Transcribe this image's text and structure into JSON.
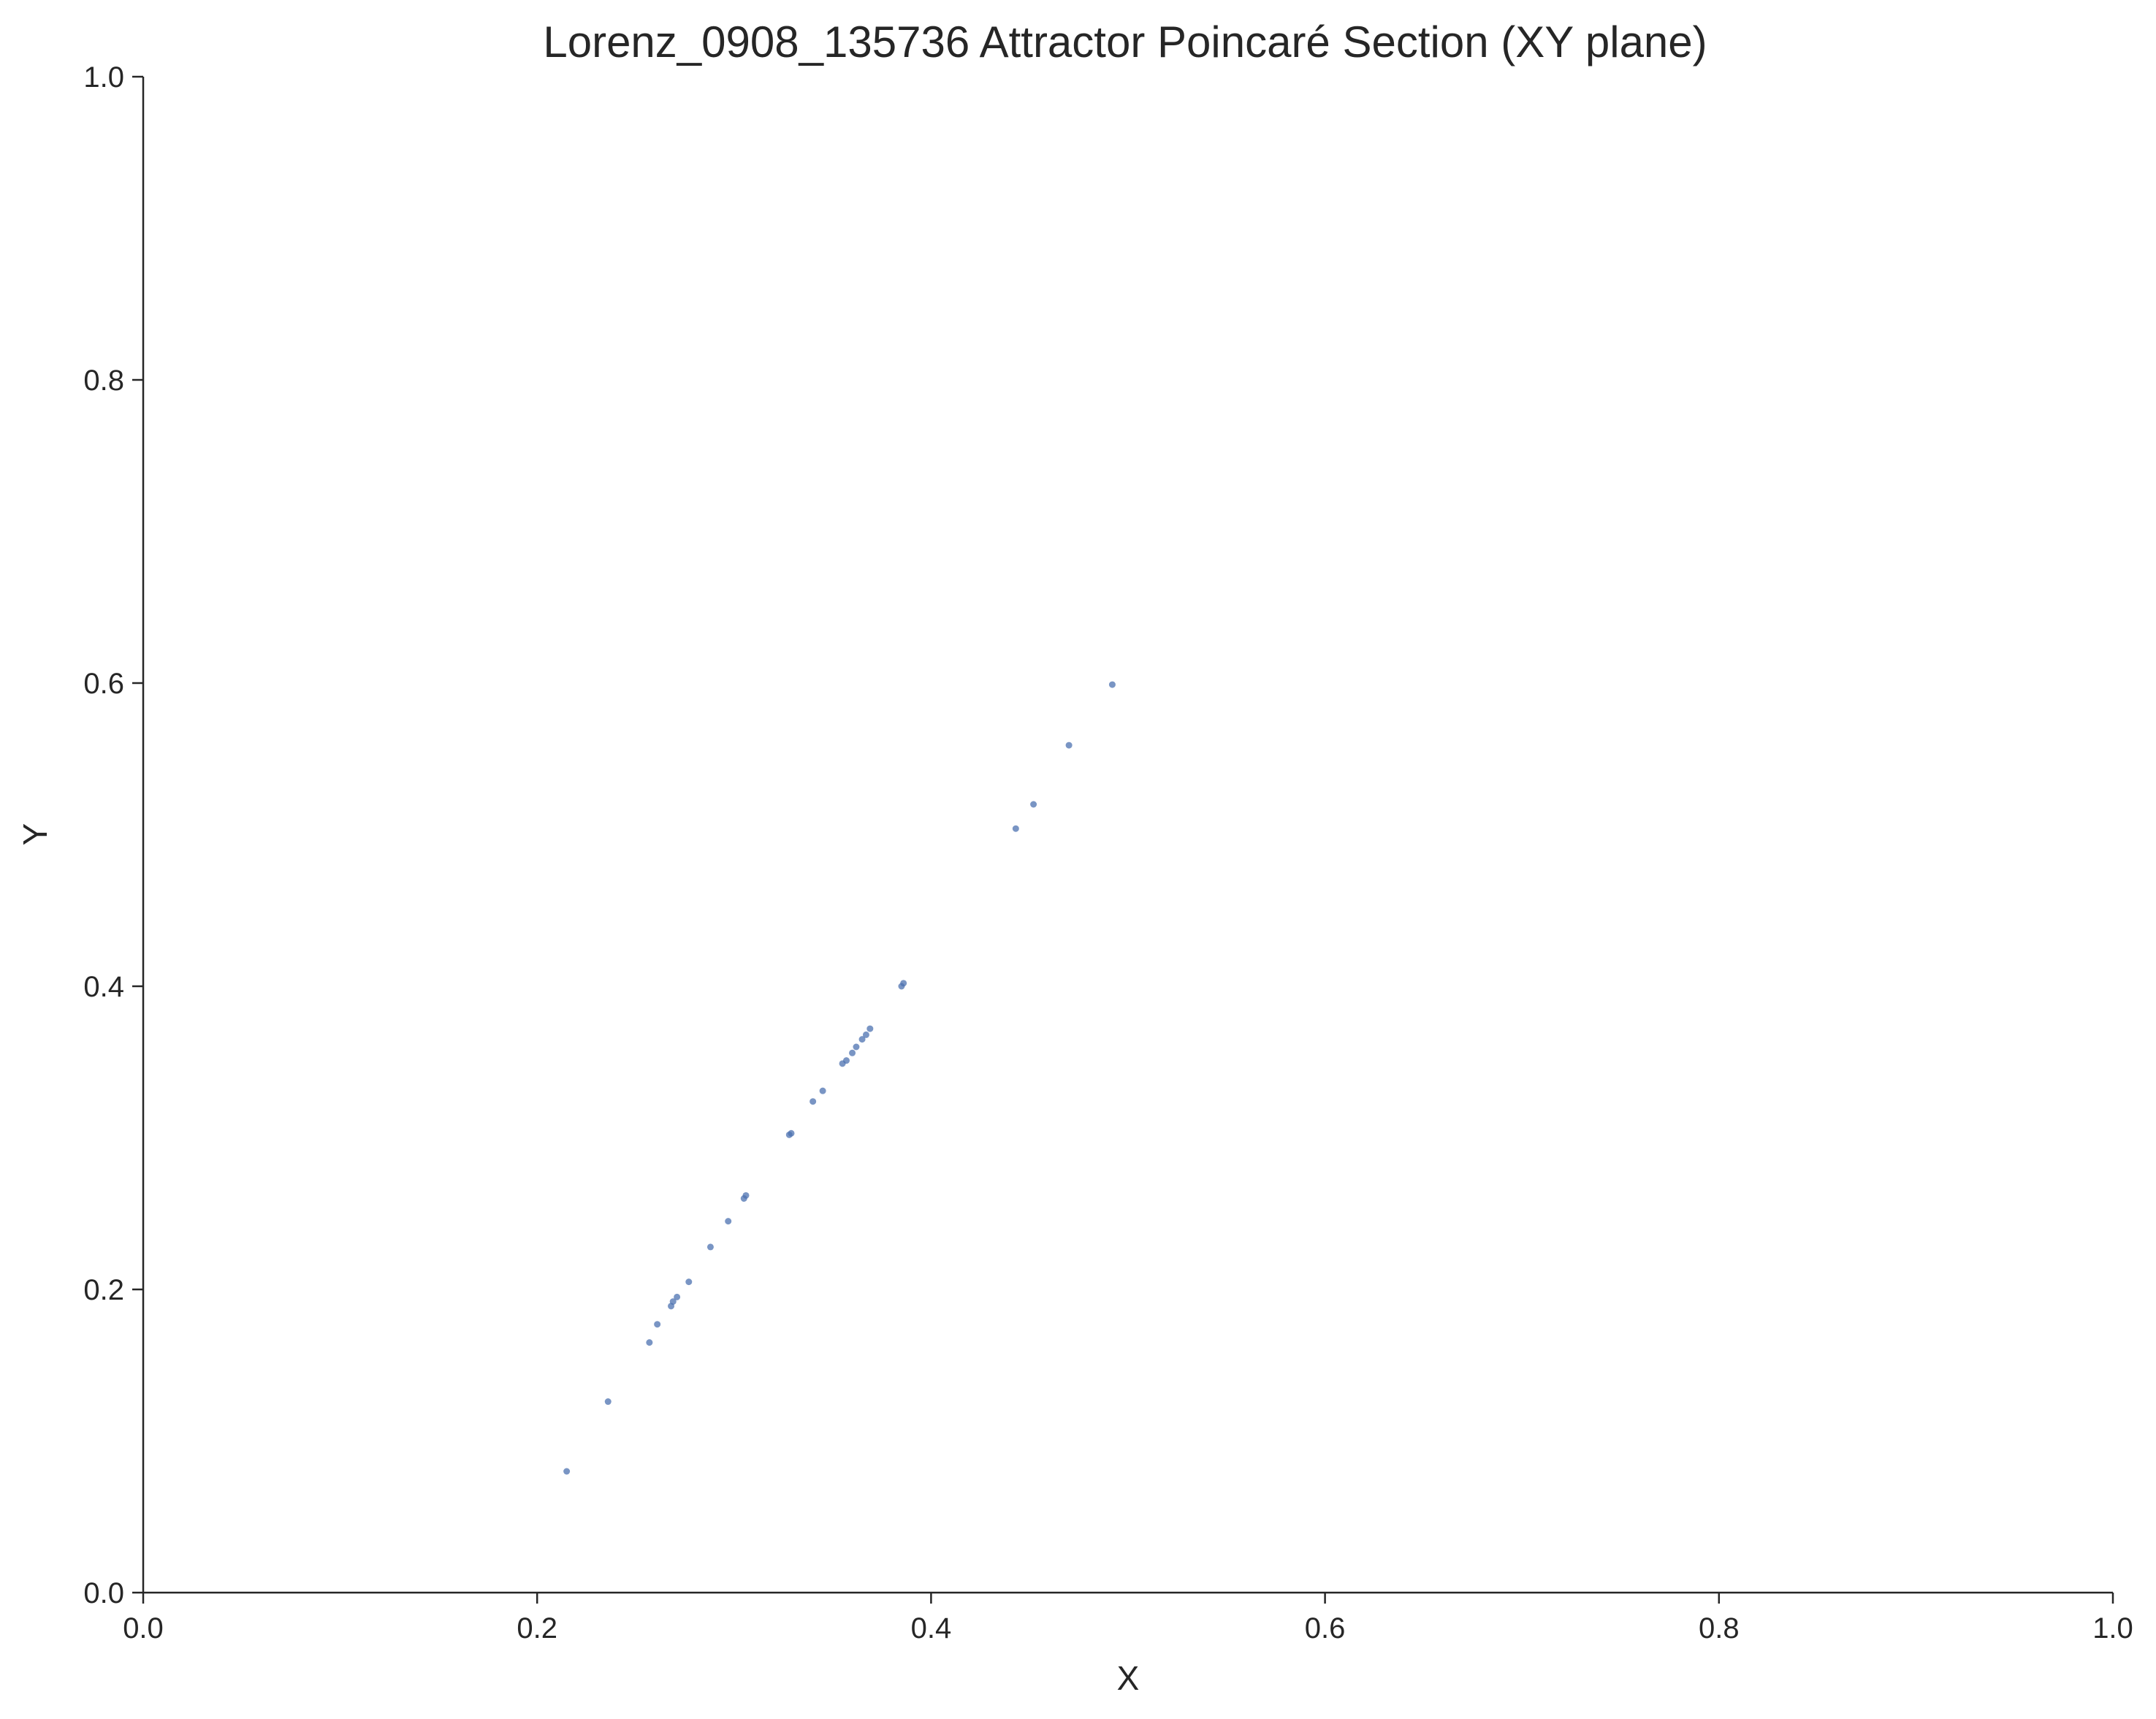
{
  "chart_data": {
    "type": "scatter",
    "title": "Lorenz_0908_135736 Attractor Poincaré Section (XY plane)",
    "xlabel": "X",
    "ylabel": "Y",
    "xlim": [
      0.0,
      1.0
    ],
    "ylim": [
      0.0,
      1.0
    ],
    "x_ticks": [
      0.0,
      0.2,
      0.4,
      0.6,
      0.8,
      1.0
    ],
    "y_ticks": [
      0.0,
      0.2,
      0.4,
      0.6,
      0.8,
      1.0
    ],
    "x_tick_labels": [
      "0.0",
      "0.2",
      "0.4",
      "0.6",
      "0.8",
      "1.0"
    ],
    "y_tick_labels": [
      "0.0",
      "0.2",
      "0.4",
      "0.6",
      "0.8",
      "1.0"
    ],
    "grid": false,
    "marker_color": "#4c72b0",
    "points": [
      {
        "x": 0.215,
        "y": 0.08
      },
      {
        "x": 0.236,
        "y": 0.126
      },
      {
        "x": 0.257,
        "y": 0.165
      },
      {
        "x": 0.261,
        "y": 0.177
      },
      {
        "x": 0.268,
        "y": 0.189
      },
      {
        "x": 0.269,
        "y": 0.192
      },
      {
        "x": 0.271,
        "y": 0.195
      },
      {
        "x": 0.277,
        "y": 0.205
      },
      {
        "x": 0.288,
        "y": 0.228
      },
      {
        "x": 0.297,
        "y": 0.245
      },
      {
        "x": 0.305,
        "y": 0.26
      },
      {
        "x": 0.306,
        "y": 0.262
      },
      {
        "x": 0.328,
        "y": 0.302
      },
      {
        "x": 0.329,
        "y": 0.303
      },
      {
        "x": 0.34,
        "y": 0.324
      },
      {
        "x": 0.345,
        "y": 0.331
      },
      {
        "x": 0.355,
        "y": 0.349
      },
      {
        "x": 0.357,
        "y": 0.351
      },
      {
        "x": 0.36,
        "y": 0.356
      },
      {
        "x": 0.362,
        "y": 0.36
      },
      {
        "x": 0.365,
        "y": 0.365
      },
      {
        "x": 0.367,
        "y": 0.368
      },
      {
        "x": 0.369,
        "y": 0.372
      },
      {
        "x": 0.385,
        "y": 0.4
      },
      {
        "x": 0.386,
        "y": 0.402
      },
      {
        "x": 0.443,
        "y": 0.504
      },
      {
        "x": 0.452,
        "y": 0.52
      },
      {
        "x": 0.47,
        "y": 0.559
      },
      {
        "x": 0.492,
        "y": 0.599
      }
    ]
  }
}
